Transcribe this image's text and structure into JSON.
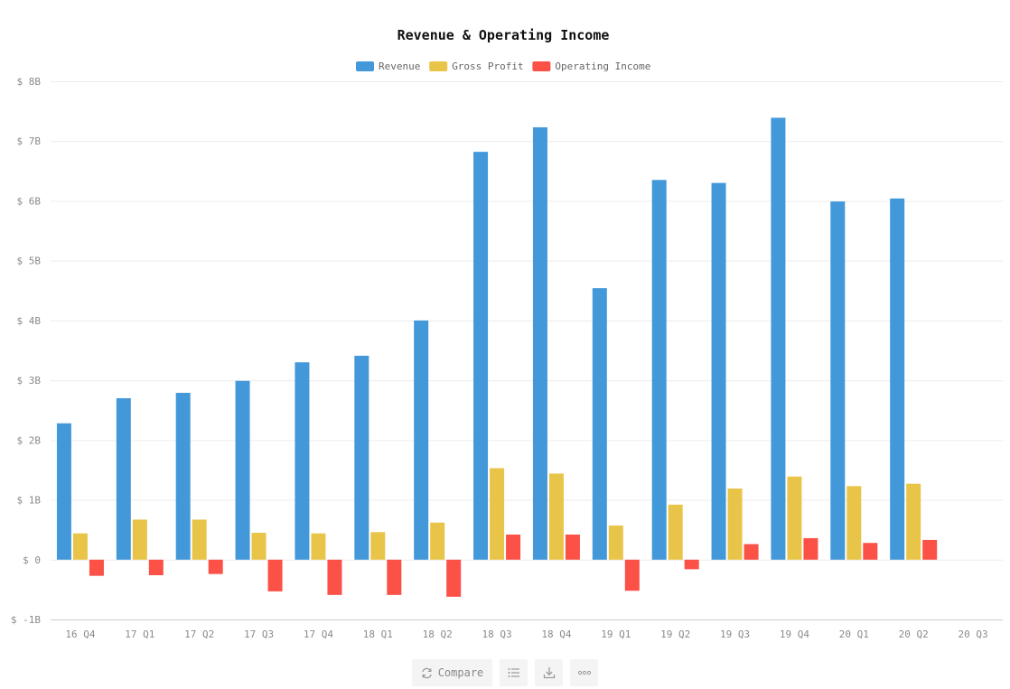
{
  "chart_data": {
    "type": "bar",
    "title": "Revenue & Operating Income",
    "categories": [
      "16 Q4",
      "17 Q1",
      "17 Q2",
      "17 Q3",
      "17 Q4",
      "18 Q1",
      "18 Q2",
      "18 Q3",
      "18 Q4",
      "19 Q1",
      "19 Q2",
      "19 Q3",
      "19 Q4",
      "20 Q1",
      "20 Q2",
      "20 Q3"
    ],
    "series": [
      {
        "name": "Revenue",
        "color": "#4398da",
        "values": [
          2.28,
          2.7,
          2.79,
          2.99,
          3.3,
          3.41,
          4.0,
          6.82,
          7.23,
          4.54,
          6.35,
          6.3,
          7.39,
          5.99,
          6.04,
          null
        ]
      },
      {
        "name": "Gross Profit",
        "color": "#e8c449",
        "values": [
          0.44,
          0.67,
          0.67,
          0.45,
          0.44,
          0.46,
          0.62,
          1.53,
          1.44,
          0.57,
          0.92,
          1.19,
          1.39,
          1.23,
          1.27,
          null
        ]
      },
      {
        "name": "Operating Income",
        "color": "#fb5147",
        "values": [
          -0.27,
          -0.26,
          -0.24,
          -0.53,
          -0.59,
          -0.59,
          -0.62,
          0.42,
          0.42,
          -0.52,
          -0.16,
          0.26,
          0.36,
          0.28,
          0.33,
          null
        ]
      }
    ],
    "y_ticks": [
      {
        "value": 8,
        "label": "$ 8B"
      },
      {
        "value": 7,
        "label": "$ 7B"
      },
      {
        "value": 6,
        "label": "$ 6B"
      },
      {
        "value": 5,
        "label": "$ 5B"
      },
      {
        "value": 4,
        "label": "$ 4B"
      },
      {
        "value": 3,
        "label": "$ 3B"
      },
      {
        "value": 2,
        "label": "$ 2B"
      },
      {
        "value": 1,
        "label": "$ 1B"
      },
      {
        "value": 0,
        "label": "$ 0"
      },
      {
        "value": -1,
        "label": "$ -1B"
      }
    ],
    "ylim": [
      -1,
      8
    ],
    "grid": true,
    "legend_position": "top-center"
  },
  "toolbar": {
    "compare_label": "Compare",
    "compare_icon": "swap-icon",
    "list_icon": "list-icon",
    "download_icon": "download-icon",
    "more_icon": "more-icon"
  },
  "colors": {
    "grid": "#ececec",
    "axis": "#cccccc",
    "tick_text": "#8a8a8a",
    "toolbar_bg": "#f4f4f4"
  }
}
